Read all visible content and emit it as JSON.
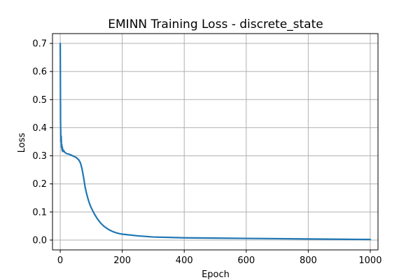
{
  "chart_data": {
    "type": "line",
    "title": "EMINN Training Loss - discrete_state",
    "xlabel": "Epoch",
    "ylabel": "Loss",
    "xlim": [
      -25,
      1025
    ],
    "ylim": [
      -0.035,
      0.735
    ],
    "xticks": [
      0,
      200,
      400,
      600,
      800,
      1000
    ],
    "yticks": [
      0.0,
      0.1,
      0.2,
      0.3,
      0.4,
      0.5,
      0.6,
      0.7
    ],
    "xtick_labels": [
      "0",
      "200",
      "400",
      "600",
      "800",
      "1000"
    ],
    "ytick_labels": [
      "0.0",
      "0.1",
      "0.2",
      "0.3",
      "0.4",
      "0.5",
      "0.6",
      "0.7"
    ],
    "grid": true,
    "line_color": "#1f77b4",
    "series": [
      {
        "x": [
          0,
          1,
          2,
          3,
          4,
          5,
          6,
          7,
          8,
          10,
          15,
          20,
          30,
          40,
          50,
          60,
          65,
          70,
          75,
          80,
          85,
          90,
          95,
          100,
          110,
          120,
          130,
          140,
          150,
          160,
          170,
          180,
          190,
          200,
          250,
          300,
          400,
          500,
          600,
          700,
          800,
          900,
          1000
        ],
        "y": [
          0.7,
          0.42,
          0.35,
          0.37,
          0.33,
          0.34,
          0.32,
          0.33,
          0.315,
          0.32,
          0.312,
          0.308,
          0.305,
          0.3,
          0.295,
          0.285,
          0.275,
          0.255,
          0.225,
          0.19,
          0.165,
          0.145,
          0.128,
          0.115,
          0.093,
          0.075,
          0.061,
          0.05,
          0.042,
          0.035,
          0.03,
          0.026,
          0.023,
          0.021,
          0.015,
          0.011,
          0.008,
          0.007,
          0.006,
          0.005,
          0.004,
          0.003,
          0.002
        ]
      }
    ]
  }
}
